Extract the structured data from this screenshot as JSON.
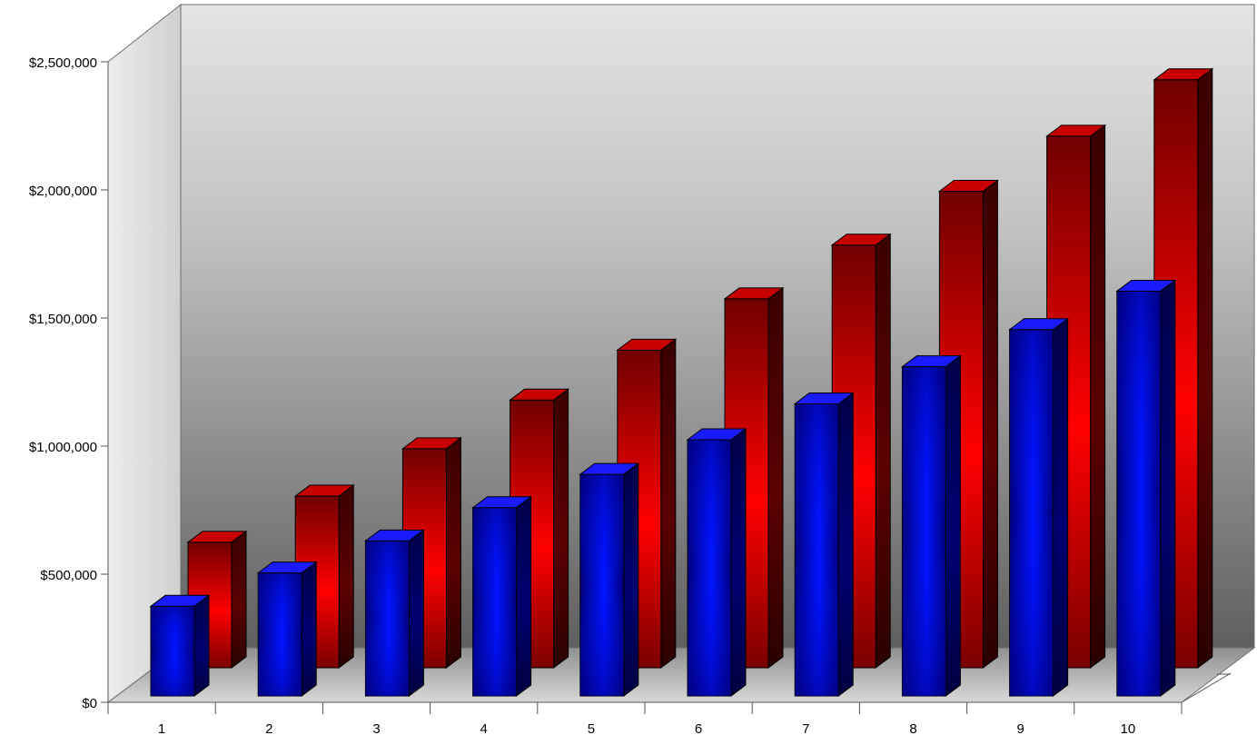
{
  "chart_data": {
    "type": "bar",
    "style": "3d-clustered-columns",
    "title": "",
    "xlabel": "",
    "ylabel": "",
    "categories": [
      "1",
      "2",
      "3",
      "4",
      "5",
      "6",
      "7",
      "8",
      "9",
      "10"
    ],
    "series": [
      {
        "color": "#0000ff",
        "values": [
          350000,
          480000,
          605000,
          735000,
          865000,
          1000000,
          1140000,
          1285000,
          1430000,
          1580000
        ]
      },
      {
        "color": "#ff0000",
        "values": [
          490000,
          670000,
          855000,
          1045000,
          1240000,
          1440000,
          1650000,
          1860000,
          2075000,
          2295000
        ]
      }
    ],
    "ylim": [
      0,
      2500000
    ],
    "yticks": [
      "$0",
      "$500,000",
      "$1,000,000",
      "$1,500,000",
      "$2,000,000",
      "$2,500,000"
    ],
    "ytick_values": [
      0,
      500000,
      1000000,
      1500000,
      2000000,
      2500000
    ],
    "grid": false,
    "legend": "none",
    "colors": {
      "wall_top": "#e2e2e2",
      "wall_bottom": "#6a6a6a",
      "floor": "#b8b8b8"
    }
  }
}
